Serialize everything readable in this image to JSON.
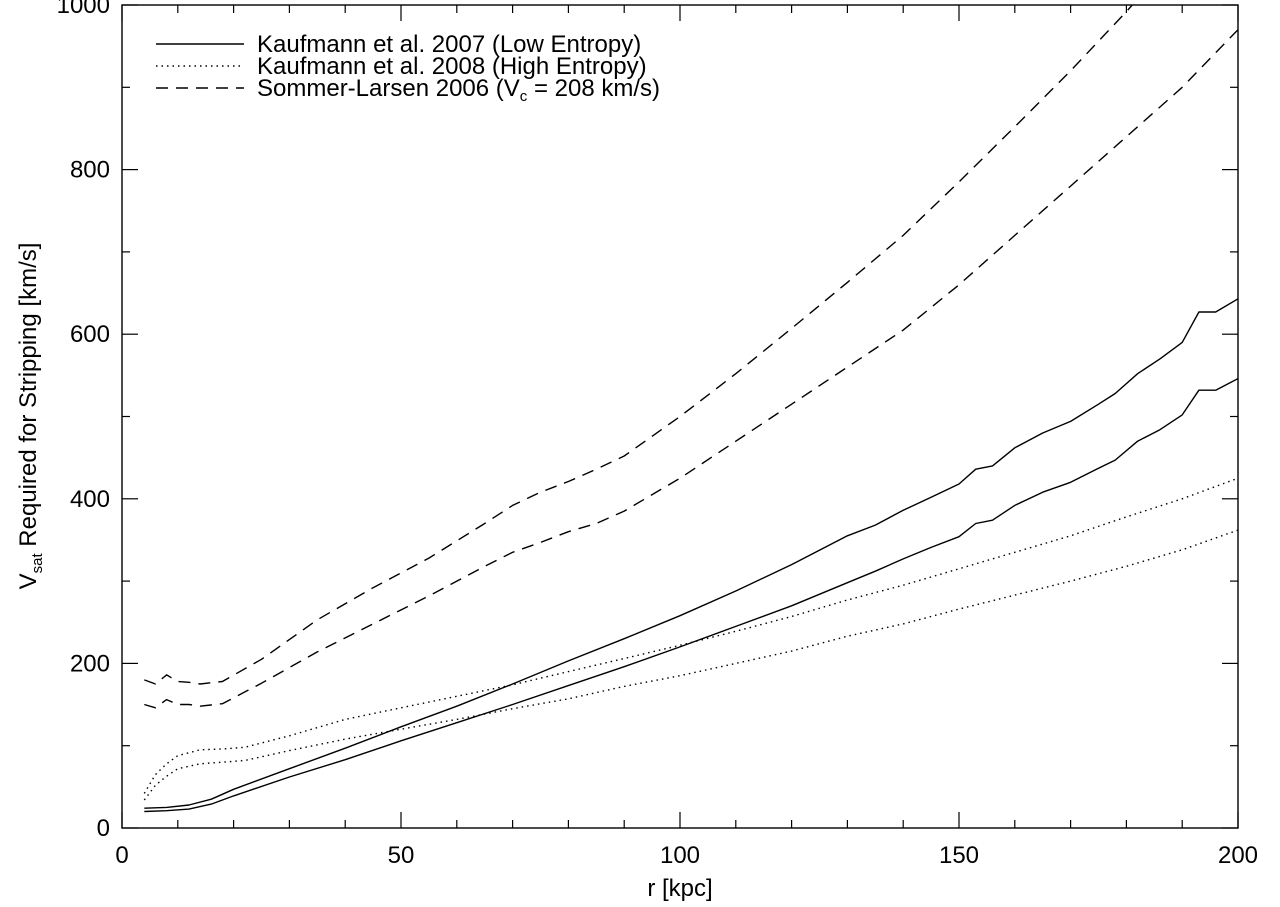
{
  "chart_data": {
    "type": "line",
    "title": "",
    "xlabel": "r [kpc]",
    "ylabel": {
      "main": "V",
      "sub": "sat",
      "rest": " Required for Stripping [km/s]"
    },
    "xlim": [
      0,
      200
    ],
    "ylim": [
      0,
      1000
    ],
    "xticks": [
      0,
      50,
      100,
      150,
      200
    ],
    "yticks": [
      0,
      200,
      400,
      600,
      800,
      1000
    ],
    "grid": false,
    "legend_position": "top-left",
    "legend": [
      {
        "style": "solid",
        "label": "Kaufmann et al. 2007 (Low Entropy)"
      },
      {
        "style": "dotted",
        "label": "Kaufmann et al. 2008 (High Entropy)"
      },
      {
        "style": "dashed",
        "label_pre": "Sommer-Larsen 2006 (V",
        "label_sub": "c",
        "label_post": " = 208 km/s)"
      }
    ],
    "series": [
      {
        "style": "solid",
        "x": [
          4,
          8,
          12,
          16,
          20,
          30,
          40,
          50,
          60,
          70,
          80,
          90,
          100,
          110,
          120,
          130,
          135,
          140,
          145,
          150,
          153,
          156,
          160,
          165,
          170,
          175,
          178,
          182,
          186,
          190,
          193,
          196,
          200
        ],
        "y": [
          24,
          25,
          28,
          35,
          47,
          72,
          97,
          123,
          148,
          175,
          203,
          230,
          258,
          288,
          320,
          355,
          368,
          386,
          402,
          418,
          436,
          440,
          462,
          480,
          494,
          515,
          528,
          552,
          570,
          590,
          627,
          627,
          643
        ]
      },
      {
        "style": "solid",
        "x": [
          4,
          8,
          12,
          16,
          20,
          30,
          40,
          50,
          60,
          70,
          80,
          90,
          100,
          110,
          120,
          130,
          135,
          140,
          145,
          150,
          153,
          156,
          160,
          165,
          170,
          175,
          178,
          182,
          186,
          190,
          193,
          196,
          200
        ],
        "y": [
          20,
          21,
          23,
          29,
          39,
          62,
          83,
          106,
          128,
          150,
          173,
          196,
          220,
          245,
          270,
          298,
          312,
          327,
          341,
          354,
          370,
          374,
          392,
          408,
          420,
          437,
          447,
          470,
          484,
          502,
          532,
          532,
          546
        ]
      },
      {
        "style": "dotted",
        "x": [
          4,
          6,
          8,
          10,
          14,
          18,
          22,
          30,
          40,
          50,
          60,
          70,
          80,
          90,
          100,
          110,
          120,
          130,
          140,
          150,
          160,
          170,
          180,
          190,
          200
        ],
        "y": [
          42,
          65,
          78,
          88,
          95,
          96,
          98,
          112,
          132,
          146,
          160,
          174,
          190,
          206,
          222,
          239,
          257,
          277,
          295,
          315,
          335,
          355,
          378,
          400,
          425
        ]
      },
      {
        "style": "dotted",
        "x": [
          4,
          6,
          8,
          10,
          14,
          18,
          22,
          30,
          40,
          50,
          60,
          70,
          80,
          90,
          100,
          110,
          120,
          130,
          140,
          150,
          160,
          170,
          180,
          190,
          200
        ],
        "y": [
          34,
          52,
          63,
          72,
          78,
          80,
          82,
          94,
          108,
          120,
          132,
          145,
          157,
          172,
          185,
          200,
          215,
          233,
          248,
          266,
          283,
          300,
          318,
          338,
          362
        ]
      },
      {
        "style": "dashed",
        "x": [
          4,
          6,
          8,
          10,
          12,
          14,
          18,
          25,
          35,
          45,
          55,
          65,
          70,
          75,
          80,
          85,
          90,
          100,
          110,
          120,
          130,
          140,
          150,
          160,
          170,
          180,
          185
        ],
        "y": [
          180,
          175,
          186,
          178,
          177,
          175,
          178,
          205,
          253,
          292,
          328,
          370,
          392,
          408,
          421,
          436,
          452,
          500,
          552,
          607,
          663,
          720,
          785,
          852,
          920,
          992,
          1030
        ]
      },
      {
        "style": "dashed",
        "x": [
          4,
          6,
          8,
          10,
          12,
          14,
          18,
          25,
          35,
          45,
          55,
          65,
          70,
          75,
          80,
          85,
          90,
          100,
          110,
          120,
          130,
          140,
          150,
          160,
          170,
          180,
          190,
          200
        ],
        "y": [
          150,
          146,
          156,
          150,
          150,
          148,
          151,
          176,
          214,
          248,
          282,
          318,
          335,
          347,
          360,
          370,
          385,
          425,
          470,
          515,
          560,
          605,
          660,
          720,
          780,
          840,
          900,
          970
        ]
      }
    ]
  }
}
